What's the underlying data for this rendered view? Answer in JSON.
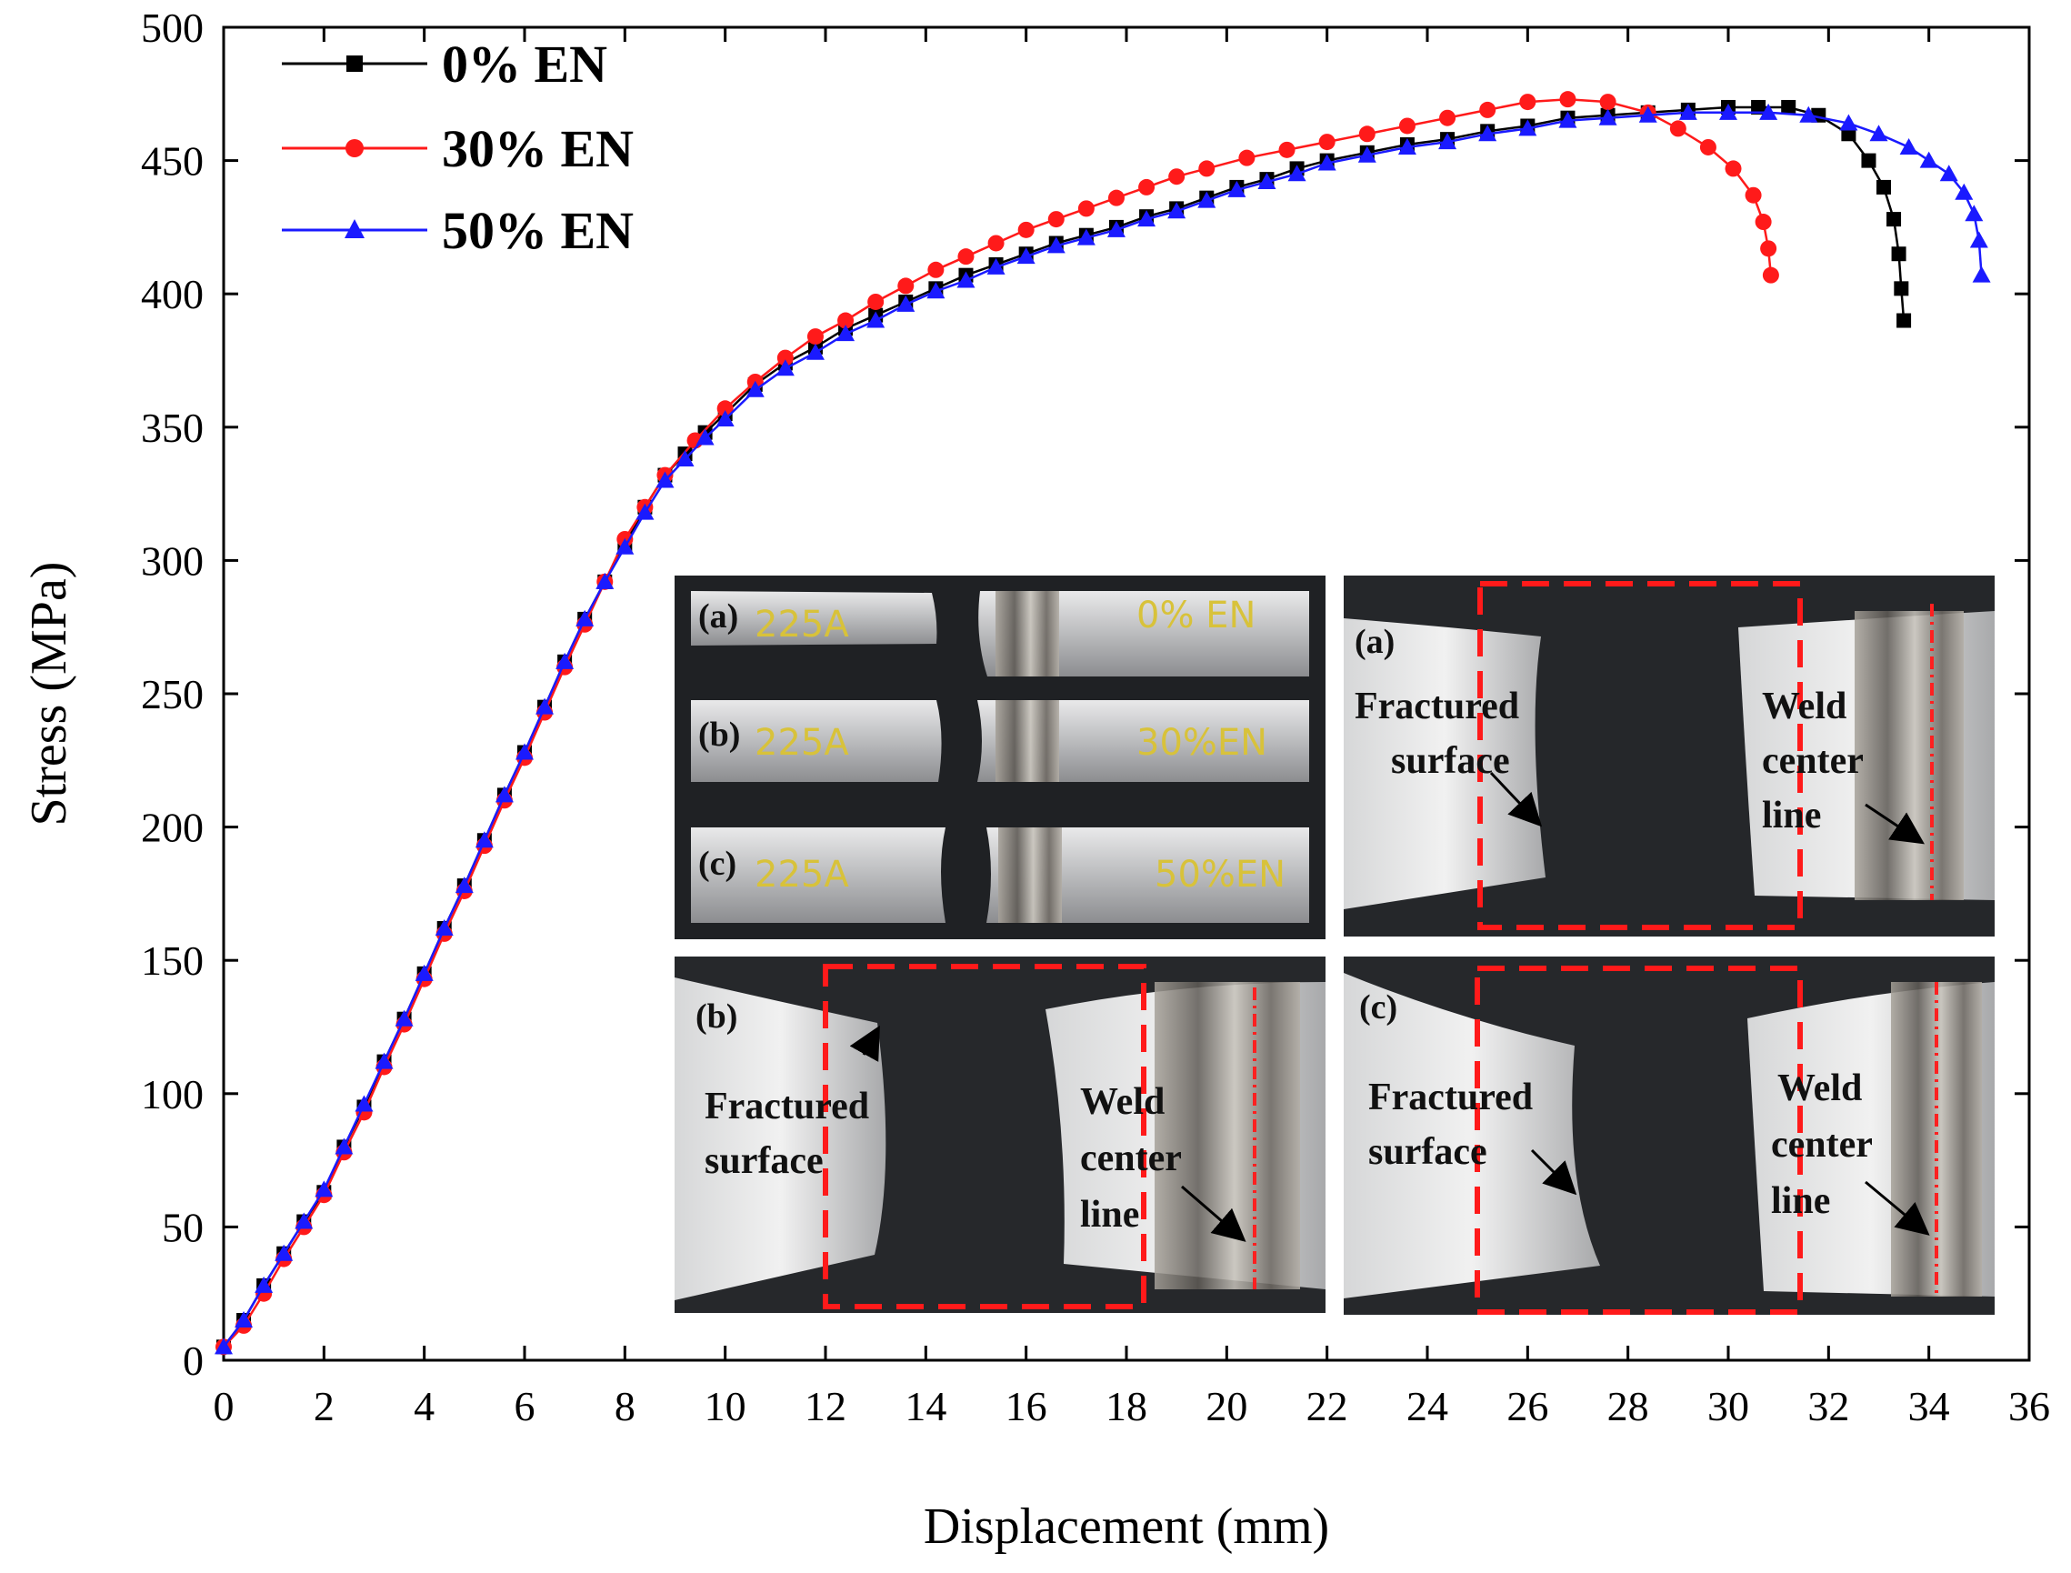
{
  "chart_data": {
    "type": "line",
    "title": "",
    "xlabel": "Displacement (mm)",
    "ylabel": "Stress (MPa)",
    "xlim": [
      0,
      36
    ],
    "ylim": [
      0,
      500
    ],
    "xticks": [
      "0",
      "2",
      "4",
      "6",
      "8",
      "10",
      "12",
      "14",
      "16",
      "18",
      "20",
      "22",
      "24",
      "26",
      "28",
      "30",
      "32",
      "34",
      "36"
    ],
    "yticks": [
      "0",
      "50",
      "100",
      "150",
      "200",
      "250",
      "300",
      "350",
      "400",
      "450",
      "500"
    ],
    "legend_position": "top-left",
    "series": [
      {
        "name": "0% EN",
        "color": "#000000",
        "marker": "square",
        "x": [
          0,
          0.4,
          0.8,
          1.2,
          1.6,
          2.0,
          2.4,
          2.8,
          3.2,
          3.6,
          4.0,
          4.4,
          4.8,
          5.2,
          5.6,
          6.0,
          6.4,
          6.8,
          7.2,
          7.6,
          8.0,
          8.4,
          8.8,
          9.2,
          9.6,
          10.0,
          10.6,
          11.2,
          11.8,
          12.4,
          13.0,
          13.6,
          14.2,
          14.8,
          15.4,
          16.0,
          16.6,
          17.2,
          17.8,
          18.4,
          19.0,
          19.6,
          20.2,
          20.8,
          21.4,
          22.0,
          22.8,
          23.6,
          24.4,
          25.2,
          26.0,
          26.8,
          27.6,
          28.4,
          29.2,
          30.0,
          30.6,
          31.2,
          31.8,
          32.4,
          32.8,
          33.1,
          33.3,
          33.4,
          33.45,
          33.5
        ],
        "y": [
          5,
          15,
          28,
          40,
          52,
          63,
          80,
          95,
          112,
          128,
          145,
          162,
          178,
          195,
          212,
          228,
          245,
          262,
          278,
          292,
          306,
          320,
          332,
          340,
          348,
          355,
          366,
          374,
          380,
          387,
          392,
          397,
          402,
          407,
          411,
          415,
          419,
          422,
          425,
          429,
          432,
          436,
          440,
          443,
          447,
          450,
          453,
          456,
          458,
          461,
          463,
          466,
          467,
          468,
          469,
          470,
          470,
          470,
          467,
          460,
          450,
          440,
          428,
          415,
          402,
          390
        ]
      },
      {
        "name": "30% EN",
        "color": "#ff1a1a",
        "marker": "circle",
        "x": [
          0,
          0.4,
          0.8,
          1.2,
          1.6,
          2.0,
          2.4,
          2.8,
          3.2,
          3.6,
          4.0,
          4.4,
          4.8,
          5.2,
          5.6,
          6.0,
          6.4,
          6.8,
          7.2,
          7.6,
          8.0,
          8.4,
          8.8,
          9.4,
          10.0,
          10.6,
          11.2,
          11.8,
          12.4,
          13.0,
          13.6,
          14.2,
          14.8,
          15.4,
          16.0,
          16.6,
          17.2,
          17.8,
          18.4,
          19.0,
          19.6,
          20.4,
          21.2,
          22.0,
          22.8,
          23.6,
          24.4,
          25.2,
          26.0,
          26.8,
          27.6,
          28.4,
          29.0,
          29.6,
          30.1,
          30.5,
          30.7,
          30.8,
          30.85
        ],
        "y": [
          5,
          13,
          25,
          38,
          50,
          62,
          78,
          93,
          110,
          126,
          143,
          160,
          176,
          193,
          210,
          226,
          243,
          260,
          276,
          292,
          308,
          320,
          332,
          345,
          357,
          367,
          376,
          384,
          390,
          397,
          403,
          409,
          414,
          419,
          424,
          428,
          432,
          436,
          440,
          444,
          447,
          451,
          454,
          457,
          460,
          463,
          466,
          469,
          472,
          473,
          472,
          468,
          462,
          455,
          447,
          437,
          427,
          417,
          407
        ]
      },
      {
        "name": "50% EN",
        "color": "#1a1aff",
        "marker": "triangle",
        "x": [
          0,
          0.4,
          0.8,
          1.2,
          1.6,
          2.0,
          2.4,
          2.8,
          3.2,
          3.6,
          4.0,
          4.4,
          4.8,
          5.2,
          5.6,
          6.0,
          6.4,
          6.8,
          7.2,
          7.6,
          8.0,
          8.4,
          8.8,
          9.2,
          9.6,
          10.0,
          10.6,
          11.2,
          11.8,
          12.4,
          13.0,
          13.6,
          14.2,
          14.8,
          15.4,
          16.0,
          16.6,
          17.2,
          17.8,
          18.4,
          19.0,
          19.6,
          20.2,
          20.8,
          21.4,
          22.0,
          22.8,
          23.6,
          24.4,
          25.2,
          26.0,
          26.8,
          27.6,
          28.4,
          29.2,
          30.0,
          30.8,
          31.6,
          32.4,
          33.0,
          33.6,
          34.0,
          34.4,
          34.7,
          34.9,
          35.0,
          35.05
        ],
        "y": [
          5,
          15,
          28,
          40,
          52,
          64,
          80,
          96,
          112,
          128,
          145,
          162,
          178,
          195,
          212,
          228,
          245,
          262,
          278,
          292,
          305,
          318,
          330,
          338,
          346,
          353,
          364,
          372,
          378,
          385,
          390,
          396,
          401,
          405,
          410,
          414,
          418,
          421,
          424,
          428,
          431,
          435,
          439,
          442,
          445,
          449,
          452,
          455,
          457,
          460,
          462,
          465,
          466,
          467,
          468,
          468,
          468,
          467,
          464,
          460,
          455,
          450,
          445,
          438,
          430,
          420,
          407
        ]
      }
    ]
  },
  "insets": {
    "overview": {
      "tags": [
        "(a)",
        "(b)",
        "(c)"
      ],
      "left_text": [
        "225A",
        "225A",
        "225A"
      ],
      "right_text": [
        "0% EN",
        "30%EN",
        "50%EN"
      ]
    },
    "panels": [
      {
        "tag": "(a)",
        "fracture_label": [
          "Fractured",
          "surface"
        ],
        "weld_label": [
          "Weld",
          "center",
          "line"
        ]
      },
      {
        "tag": "(b)",
        "fracture_label": [
          "Fractured",
          "surface"
        ],
        "weld_label": [
          "Weld",
          "center",
          "line"
        ]
      },
      {
        "tag": "(c)",
        "fracture_label": [
          "Fractured",
          "surface"
        ],
        "weld_label": [
          "Weld",
          "center",
          "line"
        ]
      }
    ]
  }
}
